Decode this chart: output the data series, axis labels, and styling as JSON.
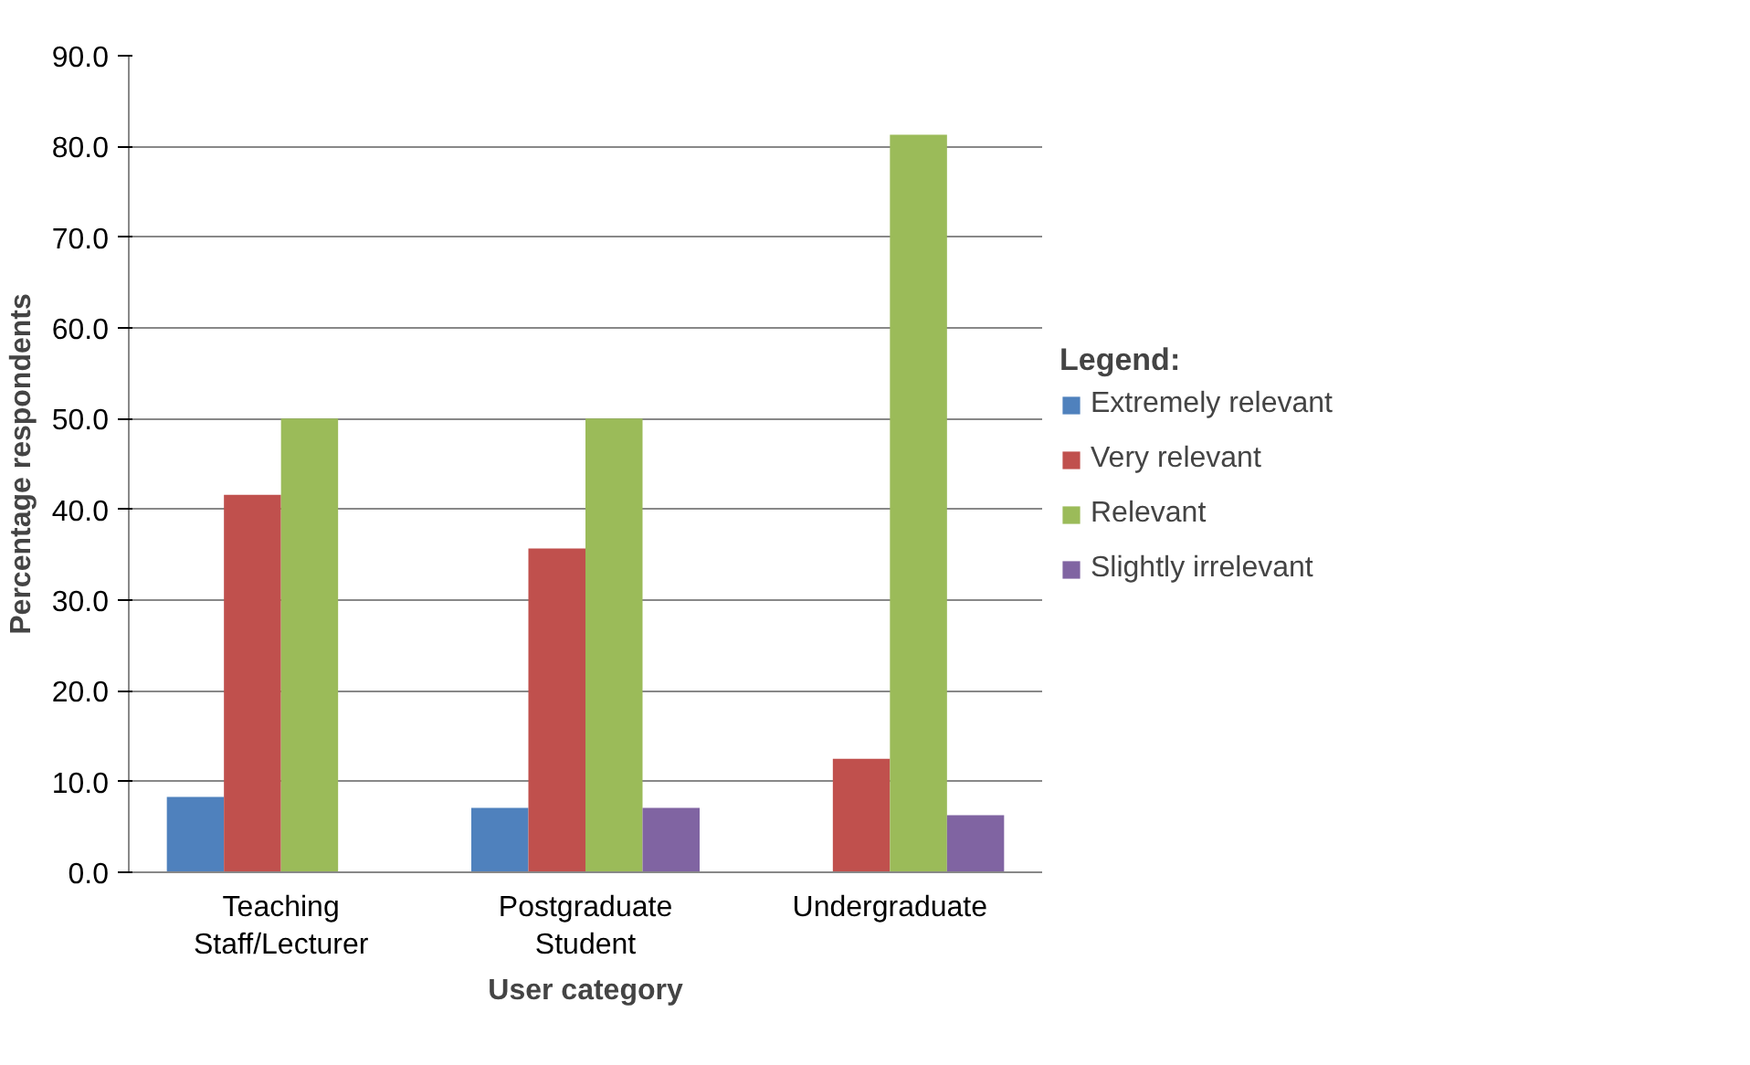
{
  "chart_data": {
    "type": "bar",
    "xlabel": "User category",
    "ylabel": "Percentage respondents",
    "legend_title": "Legend:",
    "categories": [
      "Teaching Staff/Lecturer",
      "Postgraduate Student",
      "Undergraduate"
    ],
    "series": [
      {
        "name": "Extremely relevant",
        "color": "#4f81bd",
        "values": [
          8.3,
          7.1,
          0
        ]
      },
      {
        "name": "Very relevant",
        "color": "#c0504d",
        "values": [
          41.6,
          35.7,
          12.5
        ]
      },
      {
        "name": "Relevant",
        "color": "#9bbb59",
        "values": [
          50.0,
          50.0,
          81.3
        ]
      },
      {
        "name": "Slightly irrelevant",
        "color": "#8064a2",
        "values": [
          0,
          7.1,
          6.3
        ]
      }
    ],
    "ylim": [
      0,
      90
    ],
    "yticks": [
      {
        "value": 0,
        "label": "0.0"
      },
      {
        "value": 10,
        "label": "10.0"
      },
      {
        "value": 20,
        "label": "20.0"
      },
      {
        "value": 30,
        "label": "30.0"
      },
      {
        "value": 40,
        "label": "40.0"
      },
      {
        "value": 50,
        "label": "50.0"
      },
      {
        "value": 60,
        "label": "60.0"
      },
      {
        "value": 70,
        "label": "70.0"
      },
      {
        "value": 80,
        "label": "80.0"
      },
      {
        "value": 90,
        "label": "90.0"
      }
    ],
    "grid": "y",
    "legend": "right"
  }
}
